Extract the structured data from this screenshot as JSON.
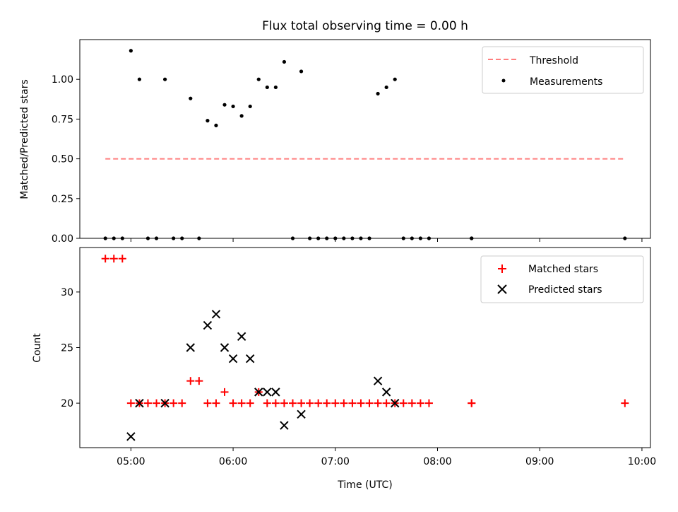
{
  "title": "Flux total observing time = 0.00 h",
  "chart_data": [
    {
      "type": "scatter",
      "panel": "top",
      "ylabel": "Matched/Predicted stars",
      "ylim": [
        0,
        1.25
      ],
      "yticks": [
        "0.00",
        "0.25",
        "0.50",
        "0.75",
        "1.00"
      ],
      "ytick_values": [
        0,
        0.25,
        0.5,
        0.75,
        1.0
      ],
      "xlim": [
        "04:30",
        "10:05"
      ],
      "grid": false,
      "legend_position": "top-right",
      "threshold": {
        "name": "Threshold",
        "value": 0.5,
        "x_start": "04:45",
        "x_end": "09:50",
        "color": "#ff7f7f",
        "style": "dashed"
      },
      "series": [
        {
          "name": "Measurements",
          "color": "#000000",
          "marker": "dot",
          "points": [
            {
              "x": "04:45",
              "y": 0
            },
            {
              "x": "04:50",
              "y": 0
            },
            {
              "x": "04:55",
              "y": 0
            },
            {
              "x": "05:00",
              "y": 1.18
            },
            {
              "x": "05:05",
              "y": 1.0
            },
            {
              "x": "05:10",
              "y": 0
            },
            {
              "x": "05:15",
              "y": 0
            },
            {
              "x": "05:20",
              "y": 1.0
            },
            {
              "x": "05:25",
              "y": 0
            },
            {
              "x": "05:30",
              "y": 0
            },
            {
              "x": "05:35",
              "y": 0.88
            },
            {
              "x": "05:40",
              "y": 0
            },
            {
              "x": "05:45",
              "y": 0.74
            },
            {
              "x": "05:50",
              "y": 0.71
            },
            {
              "x": "05:55",
              "y": 0.84
            },
            {
              "x": "06:00",
              "y": 0.83
            },
            {
              "x": "06:05",
              "y": 0.77
            },
            {
              "x": "06:10",
              "y": 0.83
            },
            {
              "x": "06:15",
              "y": 1.0
            },
            {
              "x": "06:20",
              "y": 0.95
            },
            {
              "x": "06:25",
              "y": 0.95
            },
            {
              "x": "06:30",
              "y": 1.11
            },
            {
              "x": "06:35",
              "y": 0
            },
            {
              "x": "06:40",
              "y": 1.05
            },
            {
              "x": "06:45",
              "y": 0
            },
            {
              "x": "06:50",
              "y": 0
            },
            {
              "x": "06:55",
              "y": 0
            },
            {
              "x": "07:00",
              "y": 0
            },
            {
              "x": "07:05",
              "y": 0
            },
            {
              "x": "07:10",
              "y": 0
            },
            {
              "x": "07:15",
              "y": 0
            },
            {
              "x": "07:20",
              "y": 0
            },
            {
              "x": "07:25",
              "y": 0.91
            },
            {
              "x": "07:30",
              "y": 0.95
            },
            {
              "x": "07:35",
              "y": 1.0
            },
            {
              "x": "07:40",
              "y": 0
            },
            {
              "x": "07:45",
              "y": 0
            },
            {
              "x": "07:50",
              "y": 0
            },
            {
              "x": "07:55",
              "y": 0
            },
            {
              "x": "08:20",
              "y": 0
            },
            {
              "x": "08:20",
              "y": 0
            },
            {
              "x": "09:50",
              "y": 0
            }
          ]
        }
      ]
    },
    {
      "type": "scatter",
      "panel": "bottom",
      "ylabel": "Count",
      "xlabel": "Time (UTC)",
      "ylim": [
        16,
        34
      ],
      "yticks": [
        "20",
        "25",
        "30"
      ],
      "ytick_values": [
        20,
        25,
        30
      ],
      "xlim": [
        "04:30",
        "10:05"
      ],
      "xticks": [
        "05:00",
        "06:00",
        "07:00",
        "08:00",
        "09:00",
        "10:00"
      ],
      "grid": false,
      "legend_position": "top-right",
      "series": [
        {
          "name": "Matched stars",
          "color": "#ff0000",
          "marker": "plus",
          "points": [
            {
              "x": "04:45",
              "y": 33
            },
            {
              "x": "04:50",
              "y": 33
            },
            {
              "x": "04:55",
              "y": 33
            },
            {
              "x": "05:00",
              "y": 20
            },
            {
              "x": "05:05",
              "y": 20
            },
            {
              "x": "05:10",
              "y": 20
            },
            {
              "x": "05:15",
              "y": 20
            },
            {
              "x": "05:20",
              "y": 20
            },
            {
              "x": "05:25",
              "y": 20
            },
            {
              "x": "05:30",
              "y": 20
            },
            {
              "x": "05:35",
              "y": 22
            },
            {
              "x": "05:40",
              "y": 22
            },
            {
              "x": "05:45",
              "y": 20
            },
            {
              "x": "05:50",
              "y": 20
            },
            {
              "x": "05:55",
              "y": 21
            },
            {
              "x": "06:00",
              "y": 20
            },
            {
              "x": "06:05",
              "y": 20
            },
            {
              "x": "06:10",
              "y": 20
            },
            {
              "x": "06:15",
              "y": 21
            },
            {
              "x": "06:20",
              "y": 20
            },
            {
              "x": "06:25",
              "y": 20
            },
            {
              "x": "06:30",
              "y": 20
            },
            {
              "x": "06:35",
              "y": 20
            },
            {
              "x": "06:40",
              "y": 20
            },
            {
              "x": "06:45",
              "y": 20
            },
            {
              "x": "06:50",
              "y": 20
            },
            {
              "x": "06:55",
              "y": 20
            },
            {
              "x": "07:00",
              "y": 20
            },
            {
              "x": "07:05",
              "y": 20
            },
            {
              "x": "07:10",
              "y": 20
            },
            {
              "x": "07:15",
              "y": 20
            },
            {
              "x": "07:20",
              "y": 20
            },
            {
              "x": "07:25",
              "y": 20
            },
            {
              "x": "07:30",
              "y": 20
            },
            {
              "x": "07:35",
              "y": 20
            },
            {
              "x": "07:40",
              "y": 20
            },
            {
              "x": "07:45",
              "y": 20
            },
            {
              "x": "07:50",
              "y": 20
            },
            {
              "x": "07:55",
              "y": 20
            },
            {
              "x": "08:20",
              "y": 20
            },
            {
              "x": "08:20",
              "y": 20
            },
            {
              "x": "09:50",
              "y": 20
            }
          ]
        },
        {
          "name": "Predicted stars",
          "color": "#000000",
          "marker": "x",
          "points": [
            {
              "x": "05:00",
              "y": 17
            },
            {
              "x": "05:05",
              "y": 20
            },
            {
              "x": "05:20",
              "y": 20
            },
            {
              "x": "05:35",
              "y": 25
            },
            {
              "x": "05:45",
              "y": 27
            },
            {
              "x": "05:50",
              "y": 28
            },
            {
              "x": "05:55",
              "y": 25
            },
            {
              "x": "06:00",
              "y": 24
            },
            {
              "x": "06:05",
              "y": 26
            },
            {
              "x": "06:10",
              "y": 24
            },
            {
              "x": "06:15",
              "y": 21
            },
            {
              "x": "06:20",
              "y": 21
            },
            {
              "x": "06:25",
              "y": 21
            },
            {
              "x": "06:30",
              "y": 18
            },
            {
              "x": "06:40",
              "y": 19
            },
            {
              "x": "07:25",
              "y": 22
            },
            {
              "x": "07:30",
              "y": 21
            },
            {
              "x": "07:35",
              "y": 20
            }
          ]
        }
      ]
    }
  ]
}
